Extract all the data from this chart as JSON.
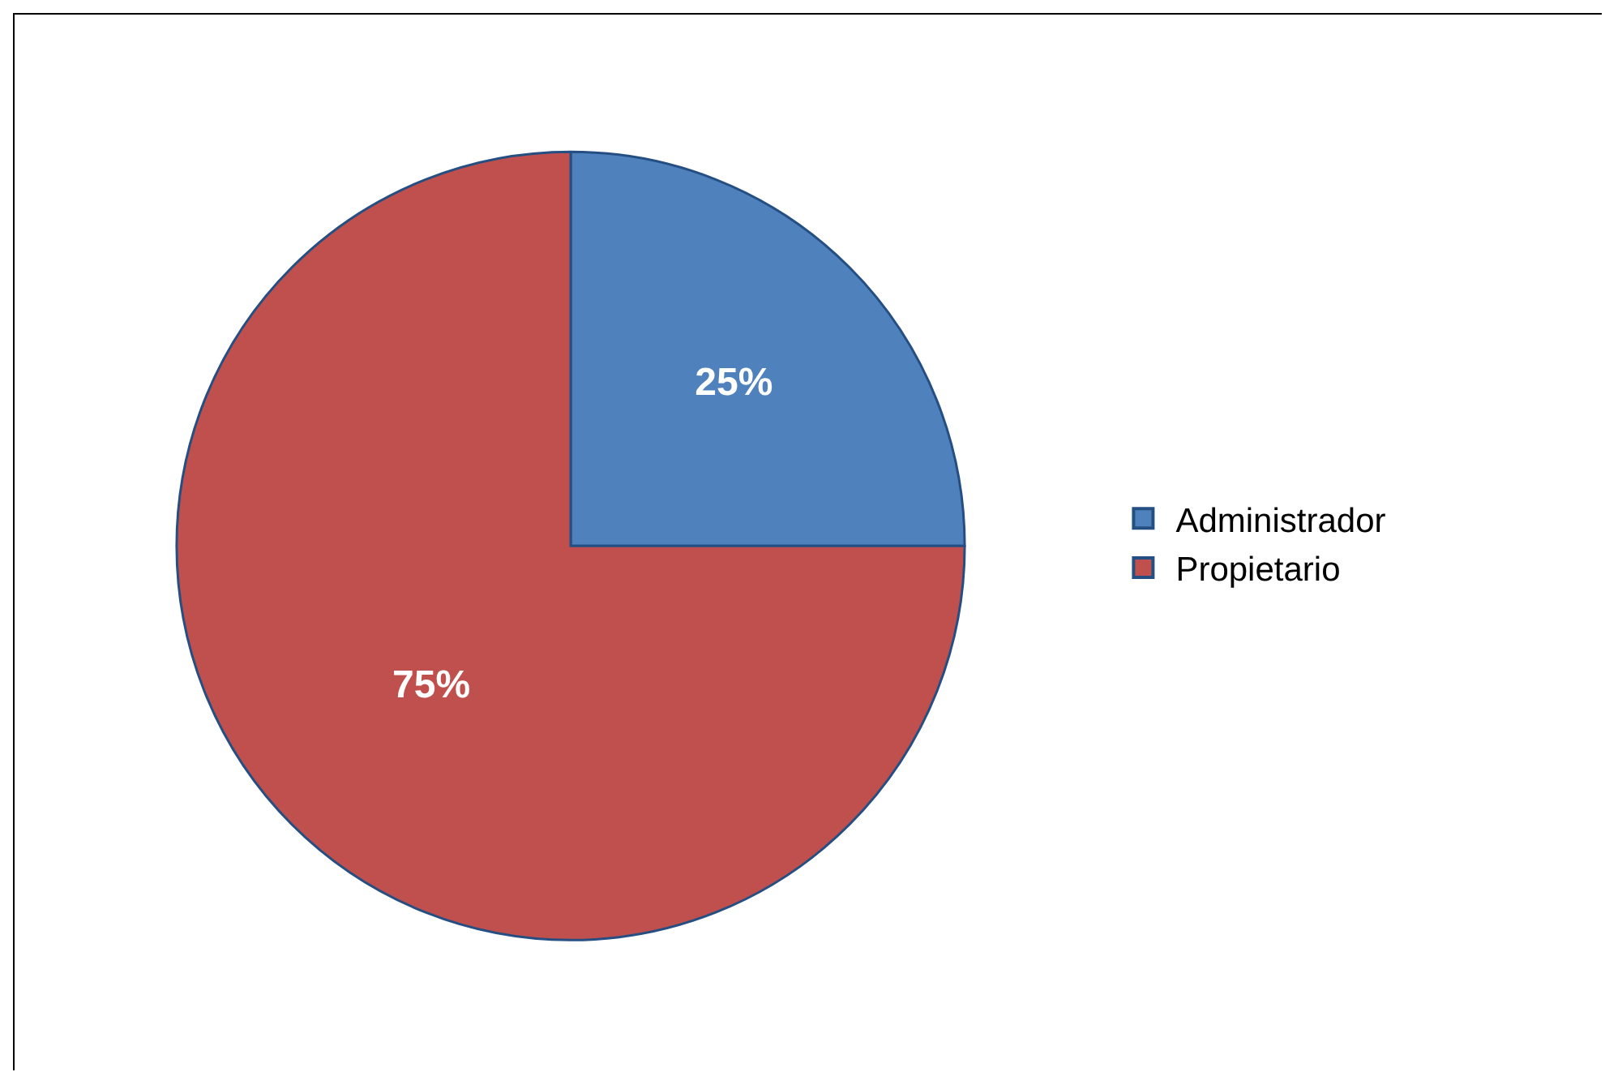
{
  "chart_data": {
    "type": "pie",
    "categories": [
      "Administrador",
      "Propietario"
    ],
    "values": [
      25,
      75
    ],
    "colors": [
      "#4f81bd",
      "#c0504d"
    ],
    "value_labels": [
      "25%",
      "75%"
    ],
    "legend": "right"
  }
}
